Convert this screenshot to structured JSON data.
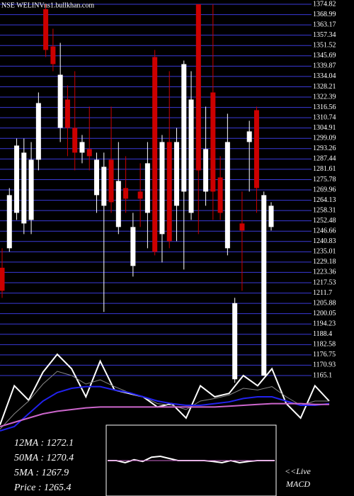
{
  "chart_data": [
    {
      "type": "candlestick",
      "title": "NSE WELINV",
      "subtitle": "ns1.bullkhan.com",
      "up_color": "#ffffff",
      "down_color": "#cc0000",
      "grid": true,
      "grid_color": "#3a3ad8",
      "ylim": [
        1165.1,
        1374.82
      ],
      "yticks": [
        1374.82,
        1368.99,
        1363.17,
        1357.34,
        1351.52,
        1345.69,
        1339.87,
        1334.04,
        1328.21,
        1322.39,
        1316.56,
        1310.74,
        1304.91,
        1299.09,
        1293.26,
        1287.44,
        1281.61,
        1275.78,
        1269.96,
        1264.13,
        1258.31,
        1252.48,
        1246.66,
        1240.83,
        1235.01,
        1229.18,
        1223.36,
        1217.53,
        1211.7,
        1205.88,
        1200.05,
        1194.23,
        1188.4,
        1182.58,
        1176.75,
        1170.93,
        1165.1
      ],
      "open": [
        1226,
        1237,
        1257,
        1251,
        1253,
        1287,
        1372,
        1351,
        1305,
        1321,
        1305,
        1291,
        1293,
        1267,
        1261,
        1287,
        1249,
        1271,
        1227,
        1269,
        1257,
        1345,
        1245,
        1297,
        1261,
        1269,
        1257,
        1374.8,
        1269,
        1325,
        1277,
        1237,
        1163,
        1251,
        1297,
        1315,
        1165,
        1249
      ],
      "high": [
        1237,
        1271,
        1299,
        1299,
        1297,
        1325,
        1374.8,
        1361,
        1353,
        1329,
        1337,
        1301,
        1317,
        1291,
        1291,
        1317,
        1297,
        1289,
        1257,
        1285,
        1297,
        1349,
        1301,
        1337,
        1305,
        1343,
        1337,
        1374.8,
        1317,
        1374.8,
        1289,
        1313,
        1209,
        1269,
        1309,
        1317,
        1269,
        1263
      ],
      "low": [
        1209,
        1235,
        1253,
        1245,
        1245,
        1281,
        1345,
        1337,
        1297,
        1289,
        1281,
        1285,
        1281,
        1257,
        1201,
        1257,
        1245,
        1257,
        1221,
        1249,
        1237,
        1233,
        1229,
        1237,
        1241,
        1225,
        1253,
        1245,
        1261,
        1253,
        1253,
        1233,
        1161,
        1213,
        1269,
        1257,
        1165,
        1247
      ],
      "close": [
        1213,
        1267,
        1295,
        1291,
        1287,
        1319,
        1349,
        1341,
        1335,
        1305,
        1291,
        1297,
        1289,
        1287,
        1283,
        1263,
        1275,
        1265,
        1249,
        1265,
        1285,
        1235,
        1297,
        1241,
        1297,
        1341,
        1321,
        1281,
        1293,
        1269,
        1257,
        1297,
        1206,
        1247,
        1303,
        1271,
        1267,
        1261
      ],
      "annotations": [
        "12MA : 1272.1",
        "50MA : 1270.4",
        "5MA : 1267.9",
        "Price : 1265.4"
      ]
    },
    {
      "type": "line",
      "ylim": [
        0,
        100
      ],
      "series": [
        {
          "color": "#ffffff",
          "values": [
            17,
            63,
            46,
            79,
            100,
            83,
            50,
            92,
            58,
            54,
            50,
            38,
            42,
            25,
            63,
            50,
            54,
            75,
            63,
            83,
            42,
            25,
            63,
            45
          ]
        },
        {
          "color": "#888888",
          "values": [
            12,
            30,
            45,
            65,
            80,
            75,
            65,
            70,
            62,
            55,
            50,
            42,
            40,
            35,
            45,
            48,
            52,
            60,
            58,
            62,
            50,
            40,
            45,
            45
          ]
        },
        {
          "color": "#2222ee",
          "values": [
            10,
            15,
            30,
            45,
            55,
            60,
            62,
            62,
            58,
            55,
            50,
            45,
            42,
            40,
            40,
            42,
            44,
            48,
            50,
            50,
            45,
            40,
            40,
            42
          ]
        },
        {
          "color": "#cc66cc",
          "values": [
            15,
            20,
            25,
            30,
            33,
            35,
            37,
            38,
            38,
            38,
            38,
            38,
            38,
            38,
            38,
            38,
            39,
            40,
            41,
            42,
            42,
            42,
            41,
            41
          ]
        }
      ]
    },
    {
      "type": "line",
      "title": "<<Live",
      "subtitle": "MACD",
      "ylim": [
        0,
        100
      ],
      "series": [
        {
          "color": "#ffffff",
          "values": [
            50,
            50,
            45,
            52,
            48,
            58,
            60,
            55,
            50,
            50,
            50,
            50,
            48,
            45,
            50,
            45,
            48,
            50,
            50,
            50
          ]
        },
        {
          "color": "#cc66cc",
          "values": [
            50,
            50,
            50,
            50,
            50,
            50,
            50,
            50,
            50,
            50,
            50,
            50,
            50,
            50,
            50,
            50,
            50,
            50,
            50,
            50
          ]
        }
      ]
    }
  ]
}
